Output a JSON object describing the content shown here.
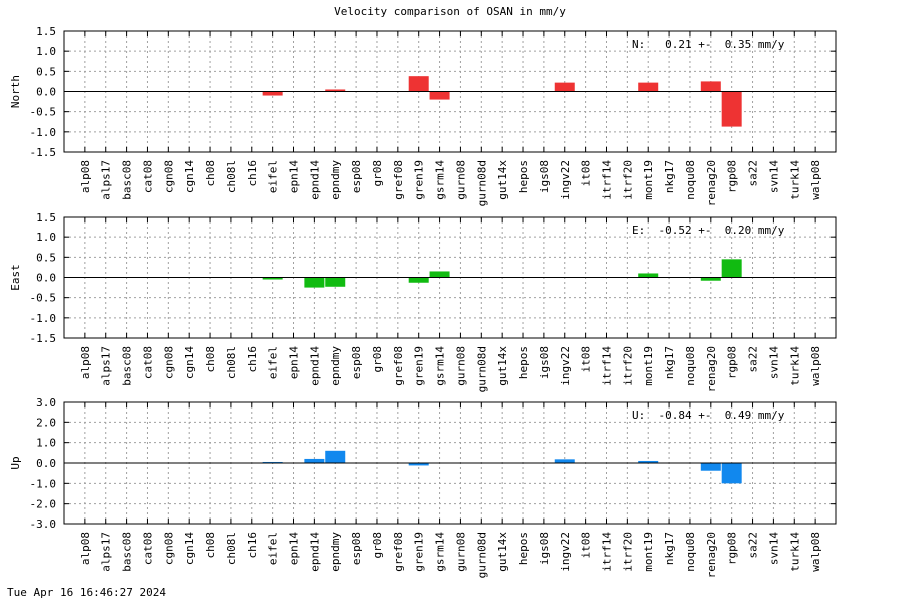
{
  "title": "Velocity comparison of OSAN in mm/y",
  "footer": "Tue Apr 16 16:46:27 2024",
  "chart_data": [
    {
      "type": "bar",
      "ylabel": "North",
      "ylim": [
        -1.5,
        1.5
      ],
      "yticks": [
        "1.5",
        "1.0",
        "0.5",
        "0.0",
        "-0.5",
        "-1.0",
        "-1.5"
      ],
      "ytick_values": [
        1.5,
        1.0,
        0.5,
        0.0,
        -0.5,
        -1.0,
        -1.5
      ],
      "grid": true,
      "color": "#ee3333",
      "annotation": "N:   0.21 +-  0.35 mm/y",
      "categories": [
        "alp08",
        "alps17",
        "basc08",
        "cat08",
        "cgn08",
        "cgn14",
        "ch08",
        "ch08l",
        "ch16",
        "eifel",
        "epn14",
        "epnd14",
        "epndmy",
        "esp08",
        "gr08",
        "gref08",
        "gren19",
        "gsrm14",
        "gurn08",
        "gurn08d",
        "gut14x",
        "hepos",
        "igs08",
        "ingv22",
        "it08",
        "itrf14",
        "itrf20",
        "mont19",
        "nkg17",
        "noqu08",
        "renag20",
        "rgp08",
        "sa22",
        "svn14",
        "turk14",
        "walp08"
      ],
      "values": [
        null,
        null,
        null,
        null,
        null,
        null,
        null,
        null,
        null,
        -0.1,
        null,
        null,
        0.05,
        null,
        null,
        null,
        0.38,
        -0.2,
        null,
        null,
        null,
        null,
        null,
        0.22,
        null,
        null,
        null,
        0.22,
        null,
        null,
        0.25,
        -0.87,
        null,
        null,
        null,
        null
      ]
    },
    {
      "type": "bar",
      "ylabel": "East",
      "ylim": [
        -1.5,
        1.5
      ],
      "yticks": [
        "1.5",
        "1.0",
        "0.5",
        "0.0",
        "-0.5",
        "-1.0",
        "-1.5"
      ],
      "ytick_values": [
        1.5,
        1.0,
        0.5,
        0.0,
        -0.5,
        -1.0,
        -1.5
      ],
      "grid": true,
      "color": "#11bb11",
      "annotation": "E:  -0.52 +-  0.20 mm/y",
      "categories": [
        "alp08",
        "alps17",
        "basc08",
        "cat08",
        "cgn08",
        "cgn14",
        "ch08",
        "ch08l",
        "ch16",
        "eifel",
        "epn14",
        "epnd14",
        "epndmy",
        "esp08",
        "gr08",
        "gref08",
        "gren19",
        "gsrm14",
        "gurn08",
        "gurn08d",
        "gut14x",
        "hepos",
        "igs08",
        "ingv22",
        "it08",
        "itrf14",
        "itrf20",
        "mont19",
        "nkg17",
        "noqu08",
        "renag20",
        "rgp08",
        "sa22",
        "svn14",
        "turk14",
        "walp08"
      ],
      "values": [
        null,
        null,
        null,
        null,
        null,
        null,
        null,
        null,
        null,
        -0.05,
        null,
        -0.25,
        -0.23,
        null,
        null,
        null,
        -0.13,
        0.15,
        null,
        null,
        null,
        null,
        null,
        null,
        null,
        null,
        null,
        0.1,
        null,
        null,
        -0.08,
        0.45,
        null,
        null,
        null,
        null
      ]
    },
    {
      "type": "bar",
      "ylabel": "Up",
      "ylim": [
        -3.0,
        3.0
      ],
      "yticks": [
        "3.0",
        "2.0",
        "1.0",
        "0.0",
        "-1.0",
        "-2.0",
        "-3.0"
      ],
      "ytick_values": [
        3.0,
        2.0,
        1.0,
        0.0,
        -1.0,
        -2.0,
        -3.0
      ],
      "grid": true,
      "color": "#1188ee",
      "annotation": "U:  -0.84 +-  0.49 mm/y",
      "categories": [
        "alp08",
        "alps17",
        "basc08",
        "cat08",
        "cgn08",
        "cgn14",
        "ch08",
        "ch08l",
        "ch16",
        "eifel",
        "epn14",
        "epnd14",
        "epndmy",
        "esp08",
        "gr08",
        "gref08",
        "gren19",
        "gsrm14",
        "gurn08",
        "gurn08d",
        "gut14x",
        "hepos",
        "igs08",
        "ingv22",
        "it08",
        "itrf14",
        "itrf20",
        "mont19",
        "nkg17",
        "noqu08",
        "renag20",
        "rgp08",
        "sa22",
        "svn14",
        "turk14",
        "walp08"
      ],
      "values": [
        null,
        null,
        null,
        null,
        null,
        null,
        null,
        null,
        null,
        0.05,
        null,
        0.2,
        0.6,
        null,
        null,
        null,
        -0.12,
        null,
        null,
        null,
        null,
        null,
        null,
        0.18,
        null,
        null,
        null,
        0.1,
        null,
        null,
        -0.38,
        -1.0,
        null,
        null,
        null,
        null
      ]
    }
  ]
}
